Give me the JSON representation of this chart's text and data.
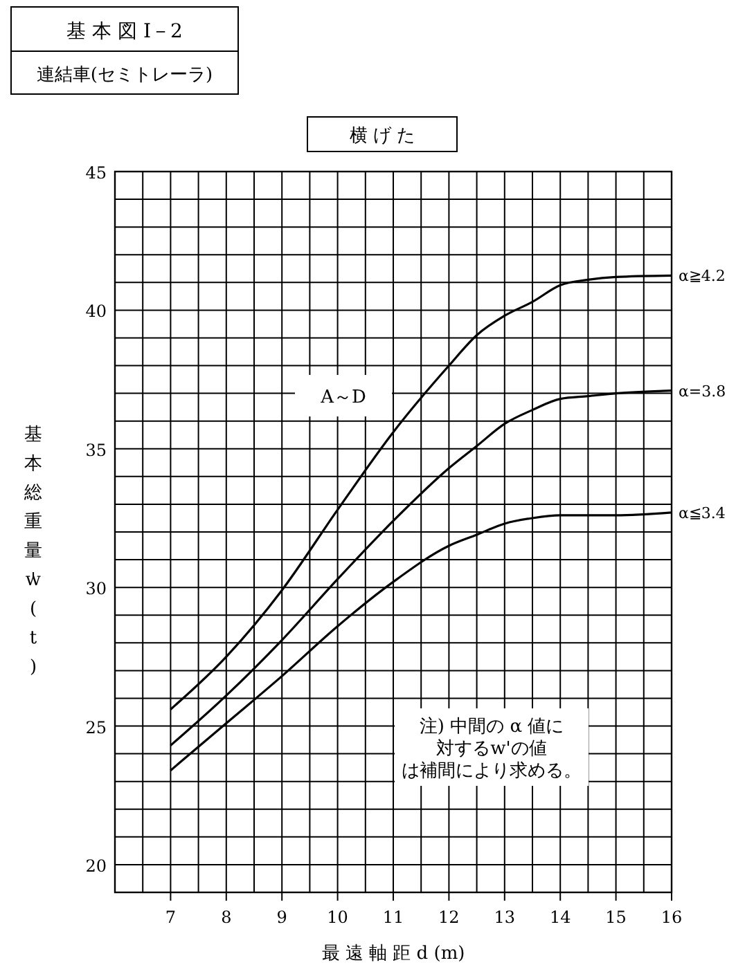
{
  "chart_data": {
    "type": "line",
    "title": "基 本 図 I－2",
    "subtitle": "連結車(セミトレーラ)",
    "xlabel": "最 遠 軸 距 d (m)",
    "ylabel": "基本総重量w'(t)",
    "annotations": [
      "横 げ た",
      "A～D",
      "注) 中間の α 値に対するw'の値は補間により求める。"
    ],
    "x": [
      7,
      8,
      9,
      10,
      11,
      12,
      12.5,
      13,
      13.5,
      14,
      14.5,
      15,
      16
    ],
    "series": [
      {
        "name": "α≧4.2",
        "color": "#000000",
        "values": [
          25.6,
          27.5,
          29.9,
          32.8,
          35.6,
          38.0,
          39.1,
          39.8,
          40.3,
          40.9,
          41.1,
          41.2,
          41.25
        ]
      },
      {
        "name": "α=3.8",
        "color": "#000000",
        "values": [
          24.3,
          26.1,
          28.1,
          30.3,
          32.4,
          34.3,
          35.1,
          35.9,
          36.4,
          36.8,
          36.9,
          37.0,
          37.1
        ]
      },
      {
        "name": "α≦3.4",
        "color": "#000000",
        "values": [
          23.4,
          25.1,
          26.8,
          28.6,
          30.2,
          31.5,
          31.9,
          32.3,
          32.5,
          32.6,
          32.6,
          32.6,
          32.7
        ]
      }
    ],
    "xlim": [
      6,
      16
    ],
    "xticks": [
      {
        "value": 6.5,
        "label": null
      },
      7,
      {
        "value": 7.5,
        "label": null
      },
      8,
      {
        "value": 8.5,
        "label": null
      },
      9,
      {
        "value": 9.5,
        "label": null
      },
      10,
      {
        "value": 10.5,
        "label": null
      },
      11,
      {
        "value": 11.5,
        "label": null
      },
      12,
      {
        "value": 12.5,
        "label": null
      },
      13,
      {
        "value": 13.5,
        "label": null
      },
      14,
      {
        "value": 14.5,
        "label": null
      },
      15,
      {
        "value": 15.5,
        "label": null
      },
      16
    ],
    "ylim": [
      19,
      45
    ],
    "yticks": [
      20,
      {
        "value": 21,
        "label": null
      },
      {
        "value": 22,
        "label": null
      },
      {
        "value": 23,
        "label": null
      },
      {
        "value": 24,
        "label": null
      },
      25,
      {
        "value": 26,
        "label": null
      },
      {
        "value": 27,
        "label": null
      },
      {
        "value": 28,
        "label": null
      },
      {
        "value": 29,
        "label": null
      },
      30,
      {
        "value": 31,
        "label": null
      },
      {
        "value": 32,
        "label": null
      },
      {
        "value": 33,
        "label": null
      },
      {
        "value": 34,
        "label": null
      },
      35,
      {
        "value": 36,
        "label": null
      },
      {
        "value": 37,
        "label": null
      },
      {
        "value": 38,
        "label": null
      },
      {
        "value": 39,
        "label": null
      },
      40,
      {
        "value": 41,
        "label": null
      },
      {
        "value": 42,
        "label": null
      },
      {
        "value": 43,
        "label": null
      },
      {
        "value": 44,
        "label": null
      },
      45
    ],
    "grid": true
  }
}
